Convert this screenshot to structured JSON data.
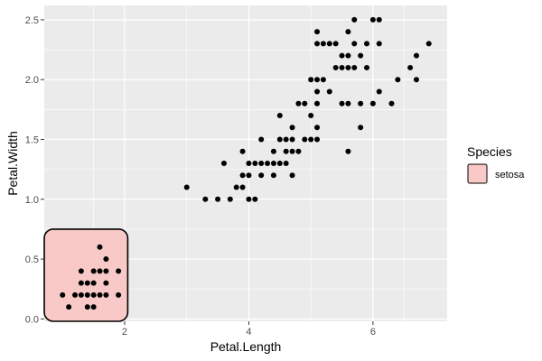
{
  "chart_data": {
    "type": "scatter",
    "title": "",
    "xlabel": "Petal.Length",
    "ylabel": "Petal.Width",
    "xlim": [
      0.705,
      7.195
    ],
    "ylim": [
      -0.02,
      2.62
    ],
    "xticks": [
      2,
      4,
      6
    ],
    "yticks": [
      0.0,
      0.5,
      1.0,
      1.5,
      2.0,
      2.5
    ],
    "xtick_labels": [
      "2",
      "4",
      "6"
    ],
    "ytick_labels": [
      "0.0",
      "0.5",
      "1.0",
      "1.5",
      "2.0",
      "2.5"
    ],
    "grid": true,
    "legend": {
      "title": "Species",
      "position": "right",
      "entries": [
        {
          "label": "setosa",
          "fill": "#f8c9c6",
          "stroke": "#000000"
        }
      ]
    },
    "highlight_region": {
      "label": "setosa",
      "x_range": [
        0.705,
        2.05
      ],
      "y_range": [
        -0.02,
        0.75
      ],
      "fill": "#f8c9c6",
      "stroke": "#000000"
    },
    "colors": {
      "panel_bg": "#ebebeb",
      "grid_major": "#ffffff",
      "point": "#000000"
    },
    "points": [
      [
        1.0,
        0.2
      ],
      [
        1.1,
        0.1
      ],
      [
        1.2,
        0.2
      ],
      [
        1.3,
        0.2
      ],
      [
        1.3,
        0.3
      ],
      [
        1.3,
        0.4
      ],
      [
        1.4,
        0.1
      ],
      [
        1.4,
        0.2
      ],
      [
        1.4,
        0.3
      ],
      [
        1.5,
        0.1
      ],
      [
        1.5,
        0.2
      ],
      [
        1.5,
        0.3
      ],
      [
        1.5,
        0.4
      ],
      [
        1.6,
        0.2
      ],
      [
        1.6,
        0.4
      ],
      [
        1.6,
        0.6
      ],
      [
        1.7,
        0.2
      ],
      [
        1.7,
        0.3
      ],
      [
        1.7,
        0.4
      ],
      [
        1.7,
        0.5
      ],
      [
        1.9,
        0.2
      ],
      [
        1.9,
        0.4
      ],
      [
        3.0,
        1.1
      ],
      [
        3.3,
        1.0
      ],
      [
        3.5,
        1.0
      ],
      [
        3.6,
        1.3
      ],
      [
        3.7,
        1.0
      ],
      [
        3.8,
        1.1
      ],
      [
        3.9,
        1.1
      ],
      [
        3.9,
        1.2
      ],
      [
        3.9,
        1.4
      ],
      [
        4.0,
        1.0
      ],
      [
        4.0,
        1.2
      ],
      [
        4.0,
        1.3
      ],
      [
        4.1,
        1.0
      ],
      [
        4.1,
        1.3
      ],
      [
        4.2,
        1.2
      ],
      [
        4.2,
        1.3
      ],
      [
        4.2,
        1.5
      ],
      [
        4.3,
        1.3
      ],
      [
        4.4,
        1.2
      ],
      [
        4.4,
        1.3
      ],
      [
        4.4,
        1.4
      ],
      [
        4.5,
        1.3
      ],
      [
        4.5,
        1.5
      ],
      [
        4.5,
        1.7
      ],
      [
        4.6,
        1.3
      ],
      [
        4.6,
        1.4
      ],
      [
        4.6,
        1.5
      ],
      [
        4.7,
        1.2
      ],
      [
        4.7,
        1.4
      ],
      [
        4.7,
        1.5
      ],
      [
        4.7,
        1.6
      ],
      [
        4.8,
        1.4
      ],
      [
        4.8,
        1.8
      ],
      [
        4.9,
        1.5
      ],
      [
        4.9,
        1.8
      ],
      [
        5.0,
        1.5
      ],
      [
        5.0,
        1.7
      ],
      [
        5.0,
        2.0
      ],
      [
        5.1,
        1.5
      ],
      [
        5.1,
        1.6
      ],
      [
        5.1,
        1.8
      ],
      [
        5.1,
        1.9
      ],
      [
        5.1,
        2.0
      ],
      [
        5.1,
        2.3
      ],
      [
        5.1,
        2.4
      ],
      [
        5.2,
        2.0
      ],
      [
        5.2,
        2.3
      ],
      [
        5.3,
        1.9
      ],
      [
        5.3,
        2.3
      ],
      [
        5.4,
        2.1
      ],
      [
        5.4,
        2.3
      ],
      [
        5.5,
        1.8
      ],
      [
        5.5,
        2.1
      ],
      [
        5.5,
        2.2
      ],
      [
        5.6,
        1.4
      ],
      [
        5.6,
        1.8
      ],
      [
        5.6,
        2.1
      ],
      [
        5.6,
        2.2
      ],
      [
        5.6,
        2.4
      ],
      [
        5.7,
        2.1
      ],
      [
        5.7,
        2.3
      ],
      [
        5.7,
        2.5
      ],
      [
        5.8,
        1.6
      ],
      [
        5.8,
        1.8
      ],
      [
        5.8,
        2.2
      ],
      [
        5.9,
        2.1
      ],
      [
        5.9,
        2.3
      ],
      [
        6.0,
        1.8
      ],
      [
        6.0,
        2.5
      ],
      [
        6.1,
        1.9
      ],
      [
        6.1,
        2.3
      ],
      [
        6.1,
        2.5
      ],
      [
        6.3,
        1.8
      ],
      [
        6.4,
        2.0
      ],
      [
        6.6,
        2.1
      ],
      [
        6.7,
        2.0
      ],
      [
        6.7,
        2.2
      ],
      [
        6.9,
        2.3
      ]
    ]
  }
}
